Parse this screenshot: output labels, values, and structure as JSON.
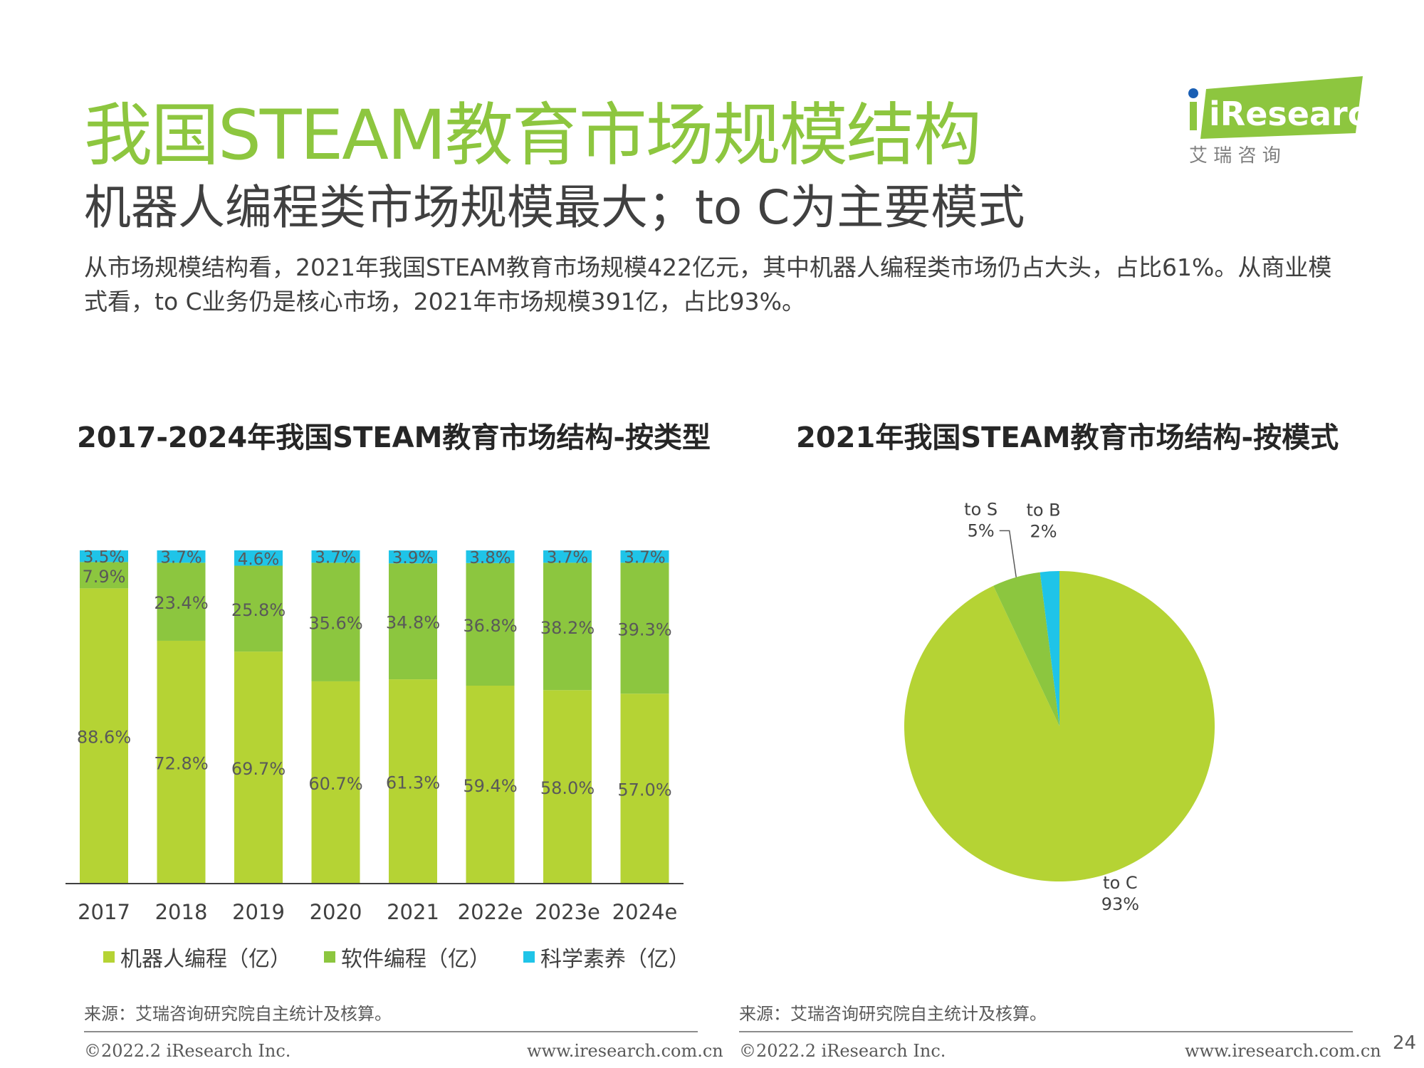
{
  "header": {
    "title": "我国STEAM教育市场规模结构",
    "subtitle": "机器人编程类市场规模最大；to C为主要模式",
    "summary": "从市场规模结构看，2021年我国STEAM教育市场规模422亿元，其中机器人编程类市场仍占大头，占比61%。从商业模式看，to C业务仍是核心市场，2021年市场规模391亿，占比93%。"
  },
  "logo": {
    "brand": "iResearch",
    "cn": "艾 瑞 咨 询"
  },
  "colors": {
    "accent": "#8dc63f",
    "robot": "#b5d334",
    "software": "#8cc63f",
    "science": "#1fc4e8"
  },
  "left_chart": {
    "title": "2017-2024年我国STEAM教育市场结构-按类型",
    "source": "来源：艾瑞咨询研究院自主统计及核算。"
  },
  "right_chart": {
    "title": "2021年我国STEAM教育市场结构-按模式",
    "source": "来源：艾瑞咨询研究院自主统计及核算。"
  },
  "chart_data": [
    {
      "type": "bar",
      "stacked": true,
      "percent": true,
      "title": "2017-2024年我国STEAM教育市场结构-按类型",
      "categories": [
        "2017",
        "2018",
        "2019",
        "2020",
        "2021",
        "2022e",
        "2023e",
        "2024e"
      ],
      "series": [
        {
          "name": "机器人编程（亿）",
          "color": "#b5d334",
          "values": [
            88.6,
            72.8,
            69.7,
            60.7,
            61.3,
            59.4,
            58.0,
            57.0
          ],
          "labels": [
            "88.6%",
            "72.8%",
            "69.7%",
            "60.7%",
            "61.3%",
            "59.4%",
            "58.0%",
            "57.0%"
          ]
        },
        {
          "name": "软件编程（亿）",
          "color": "#8cc63f",
          "values": [
            7.9,
            23.4,
            25.8,
            35.6,
            34.8,
            36.8,
            38.2,
            39.3
          ],
          "labels": [
            "7.9%",
            "23.4%",
            "25.8%",
            "35.6%",
            "34.8%",
            "36.8%",
            "38.2%",
            "39.3%"
          ]
        },
        {
          "name": "科学素养（亿）",
          "color": "#1fc4e8",
          "values": [
            3.5,
            3.7,
            4.6,
            3.7,
            3.9,
            3.8,
            3.7,
            3.7
          ],
          "labels": [
            "3.5%",
            "3.7%",
            "4.6%",
            "3.7%",
            "3.9%",
            "3.8%",
            "3.7%",
            "3.7%"
          ]
        }
      ],
      "ylim": [
        0,
        100
      ],
      "grid": false,
      "legend": "bottom"
    },
    {
      "type": "pie",
      "title": "2021年我国STEAM教育市场结构-按模式",
      "slices": [
        {
          "name": "to C",
          "value": 93,
          "label": "93%",
          "color": "#b5d334"
        },
        {
          "name": "to S",
          "value": 5,
          "label": "5%",
          "color": "#8cc63f"
        },
        {
          "name": "to B",
          "value": 2,
          "label": "2%",
          "color": "#1fc4e8"
        }
      ]
    }
  ],
  "footer": {
    "copyright": "©2022.2 iResearch Inc.",
    "url": "www.iresearch.com.cn",
    "page": "24"
  }
}
